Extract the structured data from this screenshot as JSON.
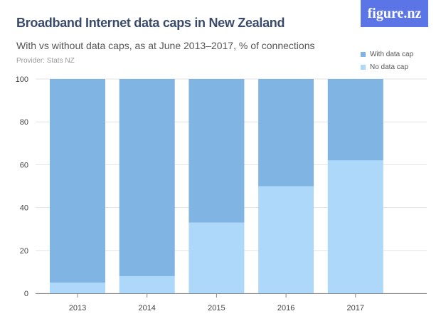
{
  "title": "Broadband Internet data caps in New Zealand",
  "subtitle": "With vs without data caps, as at June 2013–2017, % of connections",
  "provider": "Provider: Stats NZ",
  "logo": "figure.nz",
  "chart_data": {
    "type": "bar",
    "stacked": true,
    "categories": [
      "2013",
      "2014",
      "2015",
      "2016",
      "2017"
    ],
    "series": [
      {
        "name": "No data cap",
        "color": "#aed8fa",
        "values": [
          5,
          8,
          33,
          50,
          62
        ]
      },
      {
        "name": "With data cap",
        "color": "#7fb4e3",
        "values": [
          95,
          92,
          67,
          50,
          38
        ]
      }
    ],
    "yticks": [
      "0",
      "20",
      "40",
      "60",
      "80",
      "100"
    ],
    "ylim": [
      0,
      100
    ],
    "grid": true,
    "legend_position": "top-right",
    "legend": [
      "With data cap",
      "No data cap"
    ]
  }
}
